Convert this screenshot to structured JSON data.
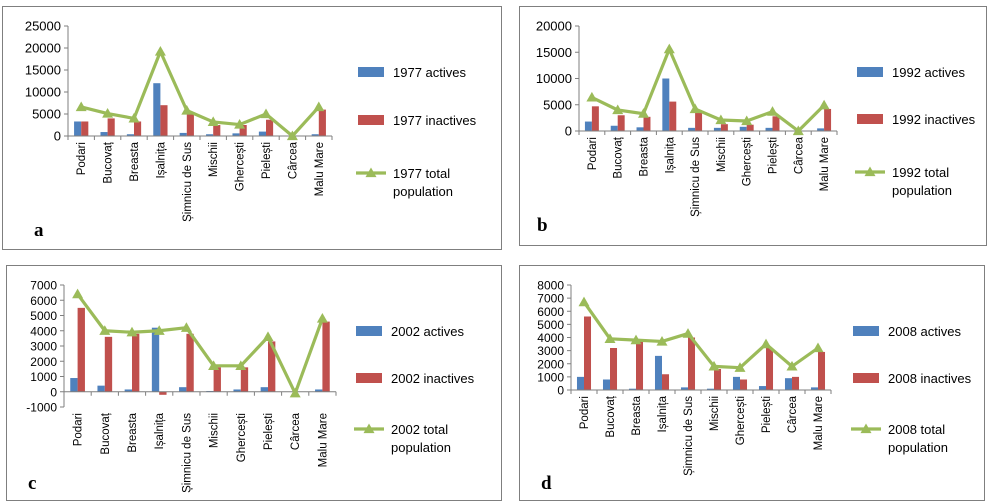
{
  "chart_data": [
    {
      "panel_label": "a",
      "type": "bar+line",
      "categories": [
        "Podari",
        "Bucovaț",
        "Breasta",
        "Ișalnița",
        "Șimnicu de Sus",
        "Mischii",
        "Ghercești",
        "Pielești",
        "Cârcea",
        "Malu Mare"
      ],
      "series": [
        {
          "name": "1977 actives",
          "kind": "bar",
          "color": "#4f81bd",
          "values": [
            3300,
            900,
            400,
            12000,
            700,
            400,
            600,
            1000,
            0,
            400
          ]
        },
        {
          "name": "1977 inactives",
          "kind": "bar",
          "color": "#c0504d",
          "values": [
            3300,
            4000,
            3300,
            7000,
            5000,
            2500,
            2500,
            3700,
            0,
            6000
          ]
        },
        {
          "name": "1977 total population",
          "kind": "line",
          "color": "#9bbb59",
          "values": [
            6600,
            5100,
            4000,
            19200,
            5800,
            3200,
            2600,
            5000,
            0,
            6600
          ]
        }
      ],
      "ylim": [
        0,
        25000
      ],
      "yticks": [
        0,
        5000,
        10000,
        15000,
        20000,
        25000
      ],
      "ytick_labels": [
        "0",
        "5000",
        "10000",
        "15000",
        "20000",
        "25000"
      ]
    },
    {
      "panel_label": "b",
      "type": "bar+line",
      "categories": [
        "Podari",
        "Bucovaț",
        "Breasta",
        "Ișalnița",
        "Șimnicu de Sus",
        "Mischii",
        "Ghercești",
        "Pielești",
        "Cârcea",
        "Malu Mare"
      ],
      "series": [
        {
          "name": "1992 actives",
          "kind": "bar",
          "color": "#4f81bd",
          "values": [
            1800,
            1000,
            700,
            10000,
            600,
            600,
            800,
            600,
            0,
            500
          ]
        },
        {
          "name": "1992 inactives",
          "kind": "bar",
          "color": "#c0504d",
          "values": [
            4700,
            3000,
            2700,
            5600,
            3500,
            1300,
            1200,
            2800,
            0,
            4200
          ]
        },
        {
          "name": "1992 total population",
          "kind": "line",
          "color": "#9bbb59",
          "values": [
            6400,
            4000,
            3300,
            15600,
            4200,
            2100,
            1900,
            3700,
            0,
            4900
          ]
        }
      ],
      "ylim": [
        0,
        20000
      ],
      "yticks": [
        0,
        5000,
        10000,
        15000,
        20000
      ],
      "ytick_labels": [
        "0",
        "5000",
        "10000",
        "15000",
        "20000"
      ]
    },
    {
      "panel_label": "c",
      "type": "bar+line",
      "categories": [
        "Podari",
        "Bucovaț",
        "Breasta",
        "Ișalnița",
        "Șimnicu de Sus",
        "Mischii",
        "Ghercești",
        "Pielești",
        "Cârcea",
        "Malu Mare"
      ],
      "series": [
        {
          "name": "2002 actives",
          "kind": "bar",
          "color": "#4f81bd",
          "values": [
            900,
            400,
            150,
            4200,
            300,
            50,
            150,
            300,
            0,
            150
          ]
        },
        {
          "name": "2002 inactives",
          "kind": "bar",
          "color": "#c0504d",
          "values": [
            5500,
            3600,
            3800,
            -200,
            3800,
            1600,
            1600,
            3300,
            0,
            4600
          ]
        },
        {
          "name": "2002 total population",
          "kind": "line",
          "color": "#9bbb59",
          "values": [
            6400,
            4000,
            3900,
            4000,
            4200,
            1700,
            1700,
            3600,
            -100,
            4800
          ]
        }
      ],
      "ylim": [
        -1000,
        7000
      ],
      "yticks": [
        -1000,
        0,
        1000,
        2000,
        3000,
        4000,
        5000,
        6000,
        7000
      ],
      "ytick_labels": [
        "-1000",
        "0",
        "1000",
        "2000",
        "3000",
        "4000",
        "5000",
        "6000",
        "7000"
      ]
    },
    {
      "panel_label": "d",
      "type": "bar+line",
      "categories": [
        "Podari",
        "Bucovaț",
        "Breasta",
        "Ișalnița",
        "Șimnicu de Sus",
        "Mischii",
        "Ghercești",
        "Pielești",
        "Cârcea",
        "Malu Mare"
      ],
      "series": [
        {
          "name": "2008 actives",
          "kind": "bar",
          "color": "#4f81bd",
          "values": [
            1000,
            800,
            100,
            2600,
            200,
            100,
            1000,
            300,
            900,
            200
          ]
        },
        {
          "name": "2008 inactives",
          "kind": "bar",
          "color": "#c0504d",
          "values": [
            5600,
            3200,
            3700,
            1200,
            4000,
            1600,
            800,
            3200,
            1000,
            2900
          ]
        },
        {
          "name": "2008 total population",
          "kind": "line",
          "color": "#9bbb59",
          "values": [
            6700,
            3900,
            3800,
            3700,
            4300,
            1800,
            1700,
            3500,
            1800,
            3200
          ]
        }
      ],
      "ylim": [
        0,
        8000
      ],
      "yticks": [
        0,
        1000,
        2000,
        3000,
        4000,
        5000,
        6000,
        7000,
        8000
      ],
      "ytick_labels": [
        "0",
        "1000",
        "2000",
        "3000",
        "4000",
        "5000",
        "6000",
        "7000",
        "8000"
      ]
    }
  ]
}
